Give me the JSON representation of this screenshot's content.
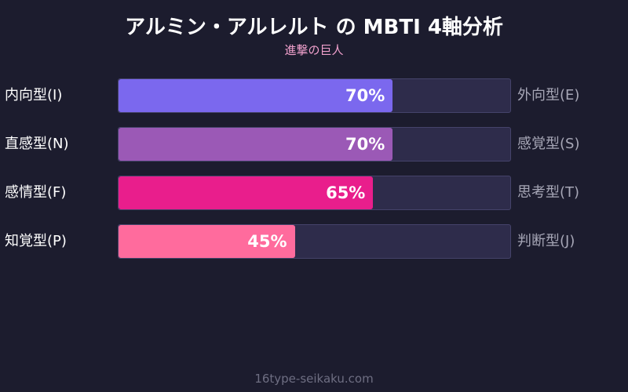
{
  "title": "アルミン・アルレルト の MBTI 4軸分析",
  "subtitle": "進撃の巨人",
  "footer": "16type-seikaku.com",
  "chart_data": {
    "type": "bar",
    "orientation": "horizontal",
    "title": "アルミン・アルレルト の MBTI 4軸分析",
    "subtitle": "進撃の巨人",
    "xlim": [
      0,
      100
    ],
    "categories": [
      "内向型(I)",
      "直感型(N)",
      "感情型(F)",
      "知覚型(P)"
    ],
    "opposite_labels": [
      "外向型(E)",
      "感覚型(S)",
      "思考型(T)",
      "判断型(J)"
    ],
    "values": [
      70,
      70,
      65,
      45
    ],
    "value_labels": [
      "70%",
      "70%",
      "65%",
      "45%"
    ],
    "colors": [
      "#7b68ee",
      "#9b59b6",
      "#e91e8c",
      "#ff6b9d"
    ]
  }
}
